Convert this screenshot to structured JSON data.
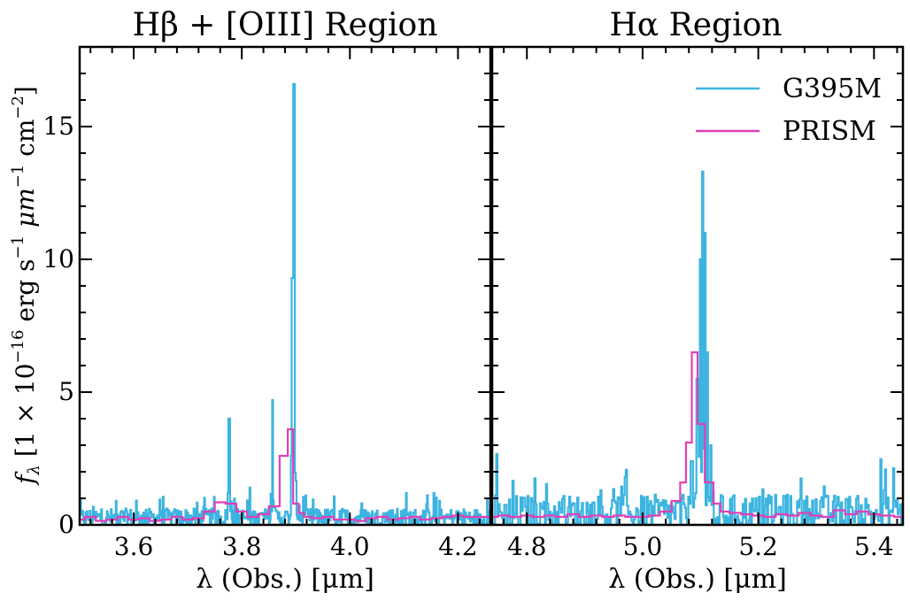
{
  "figure": {
    "ylabel_parts": {
      "f": "f",
      "sub": "λ",
      "pre": " [1 × 10",
      "exp1": "−16",
      "mid": " erg s",
      "exp2": "−1",
      "mid2": " μm",
      "exp3": "−1",
      "mid3": " cm",
      "exp4": "−2",
      "post": "]"
    }
  },
  "colors": {
    "g395m": "#3cb4e0",
    "prism": "#e040b8",
    "axis": "#000000"
  },
  "chart_data": [
    {
      "type": "line",
      "step": true,
      "title": "Hβ + [OIII] Region",
      "xlabel": "λ (Obs.) [μm]",
      "ylabel": "f_λ [1 × 10^−16 erg s^−1 μm^−1 cm^−2]",
      "xlim": [
        3.5,
        4.26
      ],
      "ylim": [
        0,
        18
      ],
      "xticks": [
        3.6,
        3.8,
        4.0,
        4.2
      ],
      "xtick_labels": [
        "3.6",
        "3.8",
        "4.0",
        "4.2"
      ],
      "yticks": [
        0,
        5,
        10,
        15
      ],
      "ytick_labels": [
        "0",
        "5",
        "10",
        "15"
      ],
      "series": [
        {
          "name": "G395M",
          "color": "#3cb4e0",
          "noise": {
            "baseline": 0.2,
            "amplitude": 0.35,
            "step": 0.0015
          },
          "peaks": [
            {
              "x": 3.777,
              "y": 4.0
            },
            {
              "x": 3.857,
              "y": 4.7
            },
            {
              "x": 3.894,
              "y": 9.3
            },
            {
              "x": 3.897,
              "y": 16.6
            }
          ]
        },
        {
          "name": "PRISM",
          "color": "#e040b8",
          "x": [
            3.5,
            3.52,
            3.54,
            3.56,
            3.58,
            3.6,
            3.62,
            3.64,
            3.66,
            3.68,
            3.7,
            3.72,
            3.74,
            3.76,
            3.78,
            3.8,
            3.82,
            3.84,
            3.86,
            3.88,
            3.89,
            3.9,
            3.91,
            3.92,
            3.94,
            3.96,
            3.98,
            4.0,
            4.02,
            4.04,
            4.06,
            4.08,
            4.1,
            4.12,
            4.14,
            4.16,
            4.18,
            4.2,
            4.22,
            4.24,
            4.26
          ],
          "y": [
            0.2,
            0.3,
            0.15,
            0.2,
            0.3,
            0.2,
            0.25,
            0.15,
            0.2,
            0.3,
            0.2,
            0.25,
            0.5,
            0.85,
            0.8,
            0.5,
            0.3,
            0.4,
            0.7,
            2.6,
            3.6,
            0.8,
            0.45,
            0.3,
            0.25,
            0.3,
            0.2,
            0.2,
            0.15,
            0.25,
            0.3,
            0.2,
            0.25,
            0.3,
            0.2,
            0.25,
            0.3,
            0.35,
            0.3,
            0.3,
            0.3
          ]
        }
      ]
    },
    {
      "type": "line",
      "step": true,
      "title": "Hα Region",
      "xlabel": "λ (Obs.) [μm]",
      "xlim": [
        4.74,
        5.45
      ],
      "ylim": [
        0,
        18
      ],
      "xticks": [
        4.8,
        5.0,
        5.2,
        5.4
      ],
      "xtick_labels": [
        "4.8",
        "5.0",
        "5.2",
        "5.4"
      ],
      "yticks": [
        0,
        5,
        10,
        15
      ],
      "legend": {
        "position": "top-right",
        "entries": [
          "G395M",
          "PRISM"
        ]
      },
      "series": [
        {
          "name": "G395M",
          "color": "#3cb4e0",
          "noise": {
            "baseline": 0.3,
            "amplitude": 0.7,
            "step": 0.002
          },
          "peaks": [
            {
              "x": 5.085,
              "y": 2.4
            },
            {
              "x": 5.095,
              "y": 5.5
            },
            {
              "x": 5.1,
              "y": 10.0
            },
            {
              "x": 5.104,
              "y": 13.3
            },
            {
              "x": 5.108,
              "y": 11.0
            },
            {
              "x": 5.112,
              "y": 6.5
            },
            {
              "x": 5.118,
              "y": 3.0
            }
          ]
        },
        {
          "name": "PRISM",
          "color": "#e040b8",
          "x": [
            4.74,
            4.76,
            4.78,
            4.8,
            4.82,
            4.84,
            4.86,
            4.88,
            4.9,
            4.92,
            4.94,
            4.96,
            4.98,
            5.0,
            5.02,
            5.04,
            5.06,
            5.07,
            5.08,
            5.09,
            5.1,
            5.115,
            5.13,
            5.14,
            5.16,
            5.18,
            5.2,
            5.22,
            5.24,
            5.26,
            5.28,
            5.3,
            5.32,
            5.34,
            5.36,
            5.38,
            5.4,
            5.42,
            5.45
          ],
          "y": [
            0.3,
            0.35,
            0.3,
            0.35,
            0.3,
            0.35,
            0.3,
            0.4,
            0.3,
            0.35,
            0.3,
            0.35,
            0.3,
            0.3,
            0.35,
            0.5,
            0.9,
            1.6,
            3.1,
            6.5,
            3.8,
            1.6,
            0.8,
            0.5,
            0.45,
            0.4,
            0.35,
            0.3,
            0.4,
            0.35,
            0.45,
            0.35,
            0.3,
            0.55,
            0.4,
            0.5,
            0.4,
            0.35,
            0.3
          ]
        }
      ]
    }
  ]
}
